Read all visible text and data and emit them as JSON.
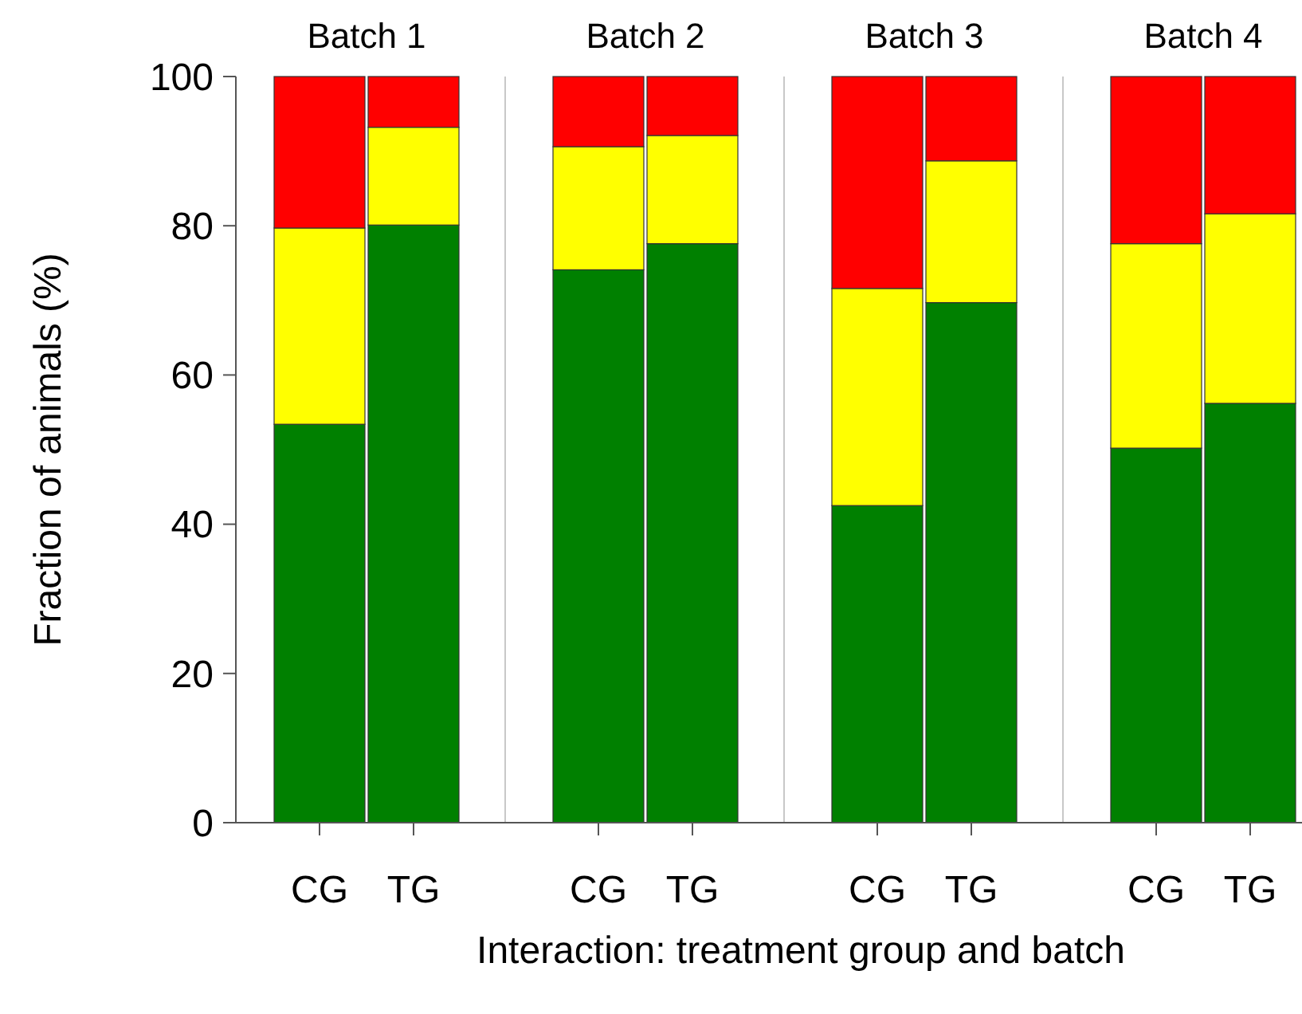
{
  "chart_data": {
    "type": "bar",
    "stacked": true,
    "xlabel": "Interaction: treatment group and batch",
    "ylabel": "Fraction of animals (%)",
    "categories": [
      "CG",
      "TG",
      "CG",
      "TG",
      "CG",
      "TG",
      "CG",
      "TG"
    ],
    "annotations": [
      "Batch 1",
      "Batch 2",
      "Batch 3",
      "Batch 4"
    ],
    "series": [
      {
        "color": "#008000",
        "values": [
          53.4,
          80.1,
          74.1,
          77.6,
          42.5,
          69.7,
          50.2,
          56.2
        ]
      },
      {
        "color": "#ffff00",
        "values": [
          26.3,
          13.1,
          16.5,
          14.5,
          29.1,
          19,
          27.4,
          25.4
        ]
      },
      {
        "color": "#ff0000",
        "values": [
          20.3,
          6.8,
          9.4,
          7.9,
          28.4,
          11.3,
          22.4,
          18.4
        ]
      }
    ],
    "ylim": [
      0,
      100
    ],
    "yticks": [
      0,
      20,
      40,
      60,
      80,
      100
    ]
  }
}
